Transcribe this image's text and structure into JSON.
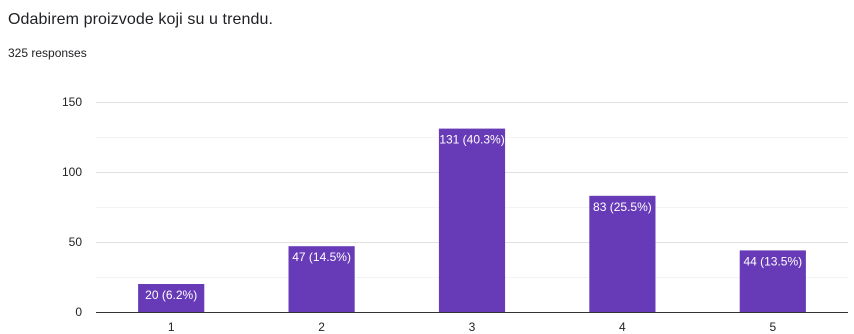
{
  "question": {
    "title": "Odabirem proizvode koji su u trendu.",
    "responses": "325 responses"
  },
  "chart_data": {
    "type": "bar",
    "categories": [
      "1",
      "2",
      "3",
      "4",
      "5"
    ],
    "values": [
      20,
      47,
      131,
      83,
      44
    ],
    "data_labels": [
      "20 (6.2%)",
      "47 (14.5%)",
      "131 (40.3%)",
      "83 (25.5%)",
      "44 (13.5%)"
    ],
    "ylim": [
      0,
      150
    ],
    "y_ticks": [
      0,
      50,
      100,
      150
    ],
    "grid": true,
    "bar_color": "#673ab7",
    "title": "",
    "xlabel": "",
    "ylabel": ""
  }
}
